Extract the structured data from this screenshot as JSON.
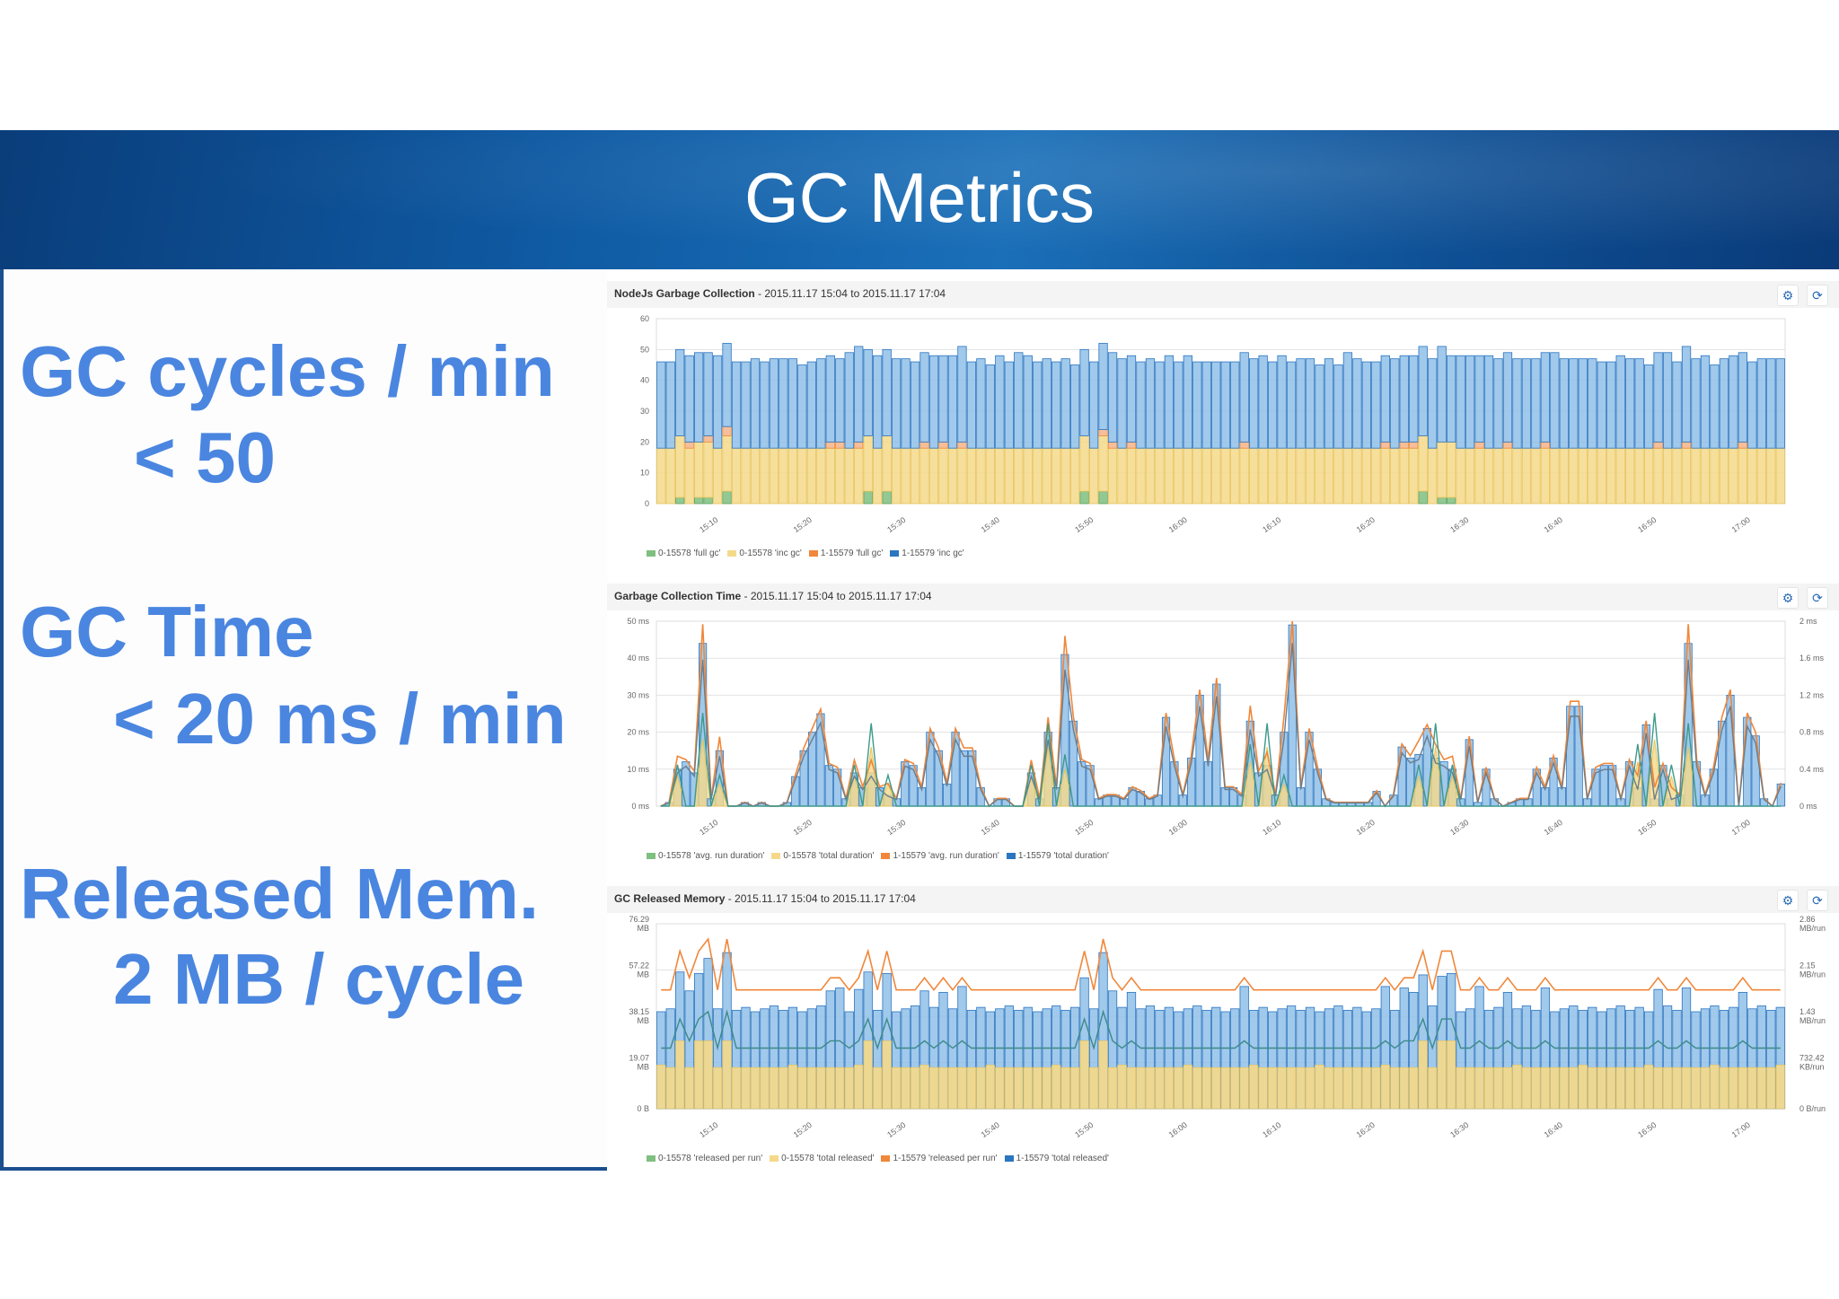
{
  "slide": {
    "title": "GC Metrics",
    "metrics": [
      {
        "label": "GC cycles / min",
        "target": "< 50"
      },
      {
        "label": "GC Time",
        "target": "< 20 ms / min"
      },
      {
        "label": "Released Mem.",
        "target": "2 MB / cycle"
      }
    ]
  },
  "colors": {
    "green": "#7fbf7f",
    "yellow": "#f5d98a",
    "orange": "#f0873a",
    "blue": "#5a9fd8",
    "blue_border": "#2c75c0",
    "metric_text": "#4a86e0"
  },
  "panels": [
    {
      "title_bold": "NodeJs Garbage Collection",
      "title_range": " - 2015.11.17 15:04 to 2015.11.17 17:04",
      "settings_icon": "⚙",
      "refresh_icon": "⟳"
    },
    {
      "title_bold": "Garbage Collection Time",
      "title_range": " - 2015.11.17 15:04 to 2015.11.17 17:04",
      "settings_icon": "⚙",
      "refresh_icon": "⟳"
    },
    {
      "title_bold": "GC Released Memory",
      "title_range": " - 2015.11.17 15:04 to 2015.11.17 17:04",
      "settings_icon": "⚙",
      "refresh_icon": "⟳"
    }
  ],
  "chart_data": [
    {
      "type": "bar",
      "title": "NodeJs Garbage Collection - 2015.11.17 15:04 to 2015.11.17 17:04",
      "xlabel": "",
      "ylabel": "",
      "x_ticks": [
        "15:10",
        "15:20",
        "15:30",
        "15:40",
        "15:50",
        "16:00",
        "16:10",
        "16:20",
        "16:30",
        "16:40",
        "16:50",
        "17:00"
      ],
      "y_ticks": [
        "0",
        "10",
        "20",
        "30",
        "40",
        "50",
        "60"
      ],
      "ylim": [
        0,
        60
      ],
      "stacked": true,
      "legend": [
        "0-15578 'full gc'",
        "0-15578 'inc gc'",
        "1-15579 'full gc'",
        "1-15579 'inc gc'"
      ],
      "series_note": "per-minute stacked totals; inc gc ~18 per node, full gc 0-4",
      "series": [
        {
          "name": "0-15578 'full gc'",
          "values": [
            0,
            0,
            2,
            0,
            2,
            2,
            0,
            4,
            0,
            0,
            0,
            0,
            0,
            0,
            0,
            0,
            0,
            0,
            0,
            0,
            0,
            0,
            4,
            0,
            4,
            0,
            0,
            0,
            0,
            0,
            0,
            0,
            0,
            0,
            0,
            0,
            0,
            0,
            0,
            0,
            0,
            0,
            0,
            0,
            0,
            4,
            0,
            4,
            0,
            0,
            0,
            0,
            0,
            0,
            0,
            0,
            0,
            0,
            0,
            0,
            0,
            0,
            0,
            0,
            0,
            0,
            0,
            0,
            0,
            0,
            0,
            0,
            0,
            0,
            0,
            0,
            0,
            0,
            0,
            0,
            0,
            4,
            0,
            2,
            2,
            0,
            0,
            0,
            0,
            0,
            0,
            0,
            0,
            0,
            0,
            0,
            0,
            0,
            0,
            0,
            0,
            0,
            0,
            0,
            0,
            0,
            0,
            0,
            0,
            0,
            0,
            0,
            0,
            0,
            0,
            0,
            0,
            0,
            0,
            0
          ]
        },
        {
          "name": "0-15578 'inc gc'",
          "values": [
            18,
            18,
            20,
            18,
            18,
            18,
            18,
            18,
            18,
            18,
            18,
            18,
            18,
            18,
            18,
            18,
            18,
            18,
            18,
            18,
            18,
            18,
            18,
            18,
            18,
            18,
            18,
            18,
            18,
            18,
            18,
            18,
            18,
            18,
            18,
            18,
            18,
            18,
            18,
            18,
            18,
            18,
            18,
            18,
            18,
            18,
            18,
            18,
            18,
            18,
            18,
            18,
            18,
            18,
            18,
            18,
            18,
            18,
            18,
            18,
            18,
            18,
            18,
            18,
            18,
            18,
            18,
            18,
            18,
            18,
            18,
            18,
            18,
            18,
            18,
            18,
            18,
            18,
            18,
            18,
            18,
            18,
            18,
            18,
            18,
            18,
            18,
            18,
            18,
            18,
            18,
            18,
            18,
            18,
            18,
            18,
            18,
            18,
            18,
            18,
            18,
            18,
            18,
            18,
            18,
            18,
            18,
            18,
            18,
            18,
            18,
            18,
            18,
            18,
            18,
            18,
            18,
            18,
            18,
            18
          ]
        },
        {
          "name": "1-15579 'full gc'",
          "values": [
            0,
            0,
            0,
            2,
            0,
            2,
            0,
            3,
            0,
            0,
            0,
            0,
            0,
            0,
            0,
            0,
            0,
            0,
            2,
            2,
            0,
            2,
            0,
            0,
            0,
            0,
            0,
            0,
            2,
            0,
            2,
            0,
            2,
            0,
            0,
            0,
            0,
            0,
            0,
            0,
            0,
            0,
            0,
            0,
            0,
            0,
            0,
            2,
            2,
            0,
            2,
            0,
            0,
            0,
            0,
            0,
            0,
            0,
            0,
            0,
            0,
            0,
            2,
            0,
            0,
            0,
            0,
            0,
            0,
            0,
            0,
            0,
            0,
            0,
            0,
            0,
            0,
            2,
            0,
            2,
            2,
            0,
            0,
            0,
            0,
            0,
            0,
            2,
            0,
            0,
            2,
            0,
            0,
            0,
            2,
            0,
            0,
            0,
            0,
            0,
            0,
            0,
            0,
            0,
            0,
            0,
            2,
            0,
            0,
            2,
            0,
            0,
            0,
            0,
            0,
            2,
            0,
            0,
            0,
            0
          ]
        },
        {
          "name": "1-15579 'inc gc'",
          "values": [
            28,
            28,
            28,
            28,
            29,
            27,
            30,
            27,
            28,
            28,
            29,
            28,
            29,
            29,
            29,
            27,
            28,
            29,
            28,
            27,
            31,
            31,
            28,
            30,
            28,
            29,
            29,
            28,
            29,
            30,
            28,
            30,
            31,
            28,
            29,
            27,
            30,
            28,
            31,
            30,
            28,
            29,
            28,
            29,
            27,
            28,
            28,
            28,
            29,
            29,
            28,
            28,
            29,
            28,
            30,
            28,
            30,
            28,
            28,
            28,
            28,
            28,
            29,
            29,
            30,
            28,
            30,
            28,
            29,
            29,
            27,
            29,
            27,
            31,
            29,
            28,
            28,
            28,
            29,
            28,
            28,
            29,
            29,
            31,
            28,
            30,
            30,
            28,
            30,
            29,
            29,
            29,
            29,
            29,
            29,
            31,
            29,
            29,
            29,
            29,
            28,
            28,
            30,
            29,
            29,
            27,
            29,
            31,
            28,
            31,
            29,
            30,
            27,
            29,
            30,
            29,
            28,
            29,
            29,
            29
          ]
        }
      ],
      "legend_position": "bottom",
      "grid": true
    },
    {
      "type": "bar",
      "title": "Garbage Collection Time - 2015.11.17 15:04 to 2015.11.17 17:04",
      "xlabel": "",
      "ylabel": "",
      "x_ticks": [
        "15:10",
        "15:20",
        "15:30",
        "15:40",
        "15:50",
        "16:00",
        "16:10",
        "16:20",
        "16:30",
        "16:40",
        "16:50",
        "17:00"
      ],
      "y_ticks": [
        "0 ms",
        "10 ms",
        "20 ms",
        "30 ms",
        "40 ms",
        "50 ms"
      ],
      "y2_ticks": [
        "0 ms",
        "0.4 ms",
        "0.8 ms",
        "1.2 ms",
        "1.6 ms",
        "2 ms"
      ],
      "ylim": [
        0,
        50
      ],
      "y2lim": [
        0,
        2
      ],
      "legend": [
        "0-15578 'avg. run duration'",
        "0-15578 'total duration'",
        "1-15579 'avg. run duration'",
        "1-15579 'total duration'"
      ],
      "series": [
        {
          "name": "1-15579 'total duration'",
          "values": [
            0,
            1,
            10,
            12,
            9,
            44,
            2,
            15,
            0,
            0,
            1,
            0,
            1,
            0,
            0,
            1,
            8,
            15,
            20,
            25,
            11,
            10,
            2,
            9,
            5,
            9,
            5,
            3,
            2,
            12,
            11,
            5,
            20,
            15,
            6,
            20,
            15,
            15,
            5,
            0,
            2,
            2,
            0,
            0,
            9,
            2,
            20,
            5,
            41,
            23,
            12,
            11,
            2,
            3,
            3,
            2,
            5,
            4,
            2,
            3,
            24,
            12,
            3,
            13,
            30,
            12,
            33,
            5,
            5,
            3,
            23,
            9,
            11,
            3,
            20,
            49,
            5,
            20,
            10,
            2,
            1,
            1,
            1,
            1,
            1,
            4,
            0,
            3,
            16,
            13,
            14,
            21,
            13,
            12,
            10,
            2,
            18,
            1,
            10,
            2,
            0,
            1,
            2,
            2,
            10,
            5,
            13,
            5,
            27,
            27,
            2,
            10,
            11,
            11,
            2,
            12,
            5,
            22,
            2,
            11,
            2,
            3,
            44,
            12,
            3,
            10,
            23,
            30,
            0,
            24,
            19,
            2,
            0,
            6
          ]
        },
        {
          "name": "0-15578 'total duration'",
          "values": [
            0,
            0,
            8,
            0,
            0,
            18,
            0,
            6,
            0,
            0,
            0,
            0,
            0,
            0,
            0,
            0,
            0,
            0,
            0,
            0,
            0,
            0,
            0,
            8,
            0,
            16,
            0,
            6,
            0,
            0,
            0,
            0,
            0,
            0,
            0,
            0,
            0,
            0,
            0,
            0,
            0,
            0,
            0,
            0,
            8,
            0,
            16,
            0,
            10,
            0,
            0,
            0,
            0,
            0,
            0,
            0,
            0,
            0,
            0,
            0,
            0,
            0,
            0,
            0,
            0,
            0,
            0,
            0,
            0,
            0,
            12,
            0,
            16,
            0,
            6,
            0,
            0,
            0,
            0,
            0,
            0,
            0,
            0,
            0,
            0,
            0,
            0,
            0,
            0,
            0,
            8,
            0,
            16,
            0,
            8,
            0,
            0,
            0,
            0,
            0,
            0,
            0,
            0,
            0,
            0,
            0,
            0,
            0,
            0,
            0,
            0,
            0,
            0,
            0,
            0,
            0,
            12,
            0,
            18,
            0,
            8,
            0,
            16,
            0,
            0,
            0,
            0,
            0,
            0,
            0,
            0,
            0,
            0,
            0,
            0
          ]
        },
        {
          "name": "1-15579 'avg. run duration'",
          "values_ms_scaled": "follows total duration peaks, max ~47 ms on left-axis scale"
        },
        {
          "name": "0-15578 'avg. run duration'",
          "values_ms_scaled": "spikes ~25 ms at full-gc minutes, else 0"
        }
      ],
      "legend_position": "bottom",
      "grid": true
    },
    {
      "type": "bar",
      "title": "GC Released Memory - 2015.11.17 15:04 to 2015.11.17 17:04",
      "xlabel": "",
      "ylabel": "",
      "x_ticks": [
        "15:10",
        "15:20",
        "15:30",
        "15:40",
        "15:50",
        "16:00",
        "16:10",
        "16:20",
        "16:30",
        "16:40",
        "16:50",
        "17:00"
      ],
      "y_ticks": [
        "0 B",
        "19.07 MB",
        "38.15 MB",
        "57.22 MB",
        "76.29 MB"
      ],
      "y2_ticks": [
        "0 B/run",
        "732.42 KB/run",
        "1.43 MB/run",
        "2.15 MB/run",
        "2.86 MB/run"
      ],
      "ylim": [
        0,
        76.29
      ],
      "y2lim": [
        0,
        2.86
      ],
      "legend": [
        "0-15578 'released per run'",
        "0-15578 'total released'",
        "1-15579 'released per run'",
        "1-15579 'total released'"
      ],
      "series": [
        {
          "name": "0-15578 'total released' (MB)",
          "approx": "~18 MB baseline, spikes to ~30 MB at full-gc minutes"
        },
        {
          "name": "1-15579 'total released' (MB, stacked top)",
          "approx": "~40-42 MB baseline total, spikes to ~57-68 MB"
        },
        {
          "name": "1-15579 'released per run' (MB/run)",
          "approx": "~1.75 MB/run baseline, spikes ~2.5 MB/run"
        },
        {
          "name": "0-15578 'released per run' (MB/run)",
          "approx": "~0.9 MB/run baseline, spikes ~1.5 MB/run"
        }
      ],
      "legend_position": "bottom",
      "grid": true
    }
  ]
}
